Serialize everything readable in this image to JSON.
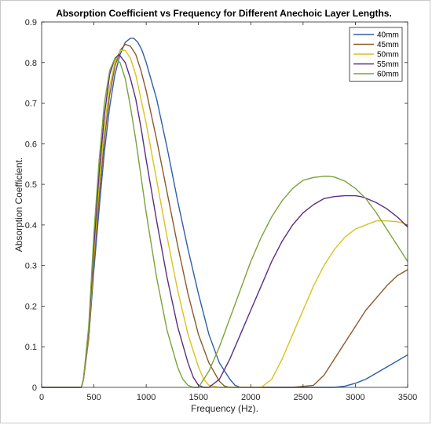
{
  "chart_data": {
    "type": "line",
    "title": "Absorption Coefficient vs Frequency for Different Anechoic Layer Lengths.",
    "xlabel": "Frequency (Hz).",
    "ylabel": "Absorption Coefficient.",
    "xlim": [
      0,
      3500
    ],
    "ylim": [
      0,
      0.9
    ],
    "xticks": [
      0,
      500,
      1000,
      1500,
      2000,
      2500,
      3000,
      3500
    ],
    "yticks": [
      0,
      0.1,
      0.2,
      0.3,
      0.4,
      0.5,
      0.6,
      0.7,
      0.8,
      0.9
    ],
    "grid": false,
    "legend_position": "top-right",
    "series": [
      {
        "name": "40mm",
        "color": "#2e5fa8",
        "x": [
          0,
          380,
          400,
          450,
          500,
          550,
          600,
          650,
          700,
          750,
          800,
          850,
          880,
          920,
          960,
          1000,
          1100,
          1200,
          1300,
          1400,
          1500,
          1600,
          1700,
          1800,
          1850,
          1900,
          1930,
          2000,
          2500,
          2800,
          2900,
          3000,
          3100,
          3200,
          3300,
          3400,
          3500
        ],
        "y": [
          0,
          0,
          0.02,
          0.12,
          0.29,
          0.44,
          0.58,
          0.69,
          0.77,
          0.82,
          0.85,
          0.86,
          0.86,
          0.85,
          0.83,
          0.8,
          0.71,
          0.59,
          0.46,
          0.34,
          0.23,
          0.13,
          0.06,
          0.02,
          0.005,
          0,
          0,
          0,
          0,
          0,
          0.003,
          0.01,
          0.02,
          0.035,
          0.05,
          0.065,
          0.08
        ]
      },
      {
        "name": "45mm",
        "color": "#8b5a2b",
        "x": [
          0,
          380,
          400,
          450,
          500,
          550,
          600,
          650,
          700,
          750,
          800,
          850,
          900,
          950,
          1000,
          1100,
          1200,
          1300,
          1400,
          1500,
          1600,
          1700,
          1750,
          1800,
          1850,
          2000,
          2400,
          2600,
          2700,
          2800,
          2900,
          3000,
          3100,
          3200,
          3300,
          3400,
          3500
        ],
        "y": [
          0,
          0,
          0.02,
          0.12,
          0.31,
          0.47,
          0.61,
          0.72,
          0.79,
          0.83,
          0.845,
          0.84,
          0.82,
          0.78,
          0.73,
          0.61,
          0.48,
          0.35,
          0.23,
          0.13,
          0.06,
          0.015,
          0.003,
          0,
          0,
          0,
          0,
          0.005,
          0.03,
          0.07,
          0.11,
          0.15,
          0.19,
          0.22,
          0.25,
          0.275,
          0.29
        ]
      },
      {
        "name": "50mm",
        "color": "#d9c21e",
        "x": [
          0,
          380,
          400,
          450,
          500,
          550,
          600,
          650,
          700,
          750,
          800,
          850,
          900,
          950,
          1000,
          1100,
          1200,
          1300,
          1400,
          1500,
          1550,
          1600,
          1700,
          2100,
          2200,
          2300,
          2400,
          2500,
          2600,
          2700,
          2800,
          2900,
          3000,
          3100,
          3200,
          3300,
          3400,
          3450,
          3500
        ],
        "y": [
          0,
          0,
          0.02,
          0.13,
          0.33,
          0.5,
          0.64,
          0.74,
          0.8,
          0.83,
          0.83,
          0.81,
          0.77,
          0.71,
          0.65,
          0.51,
          0.37,
          0.24,
          0.13,
          0.05,
          0.02,
          0.005,
          0,
          0,
          0.02,
          0.07,
          0.13,
          0.19,
          0.25,
          0.3,
          0.34,
          0.37,
          0.39,
          0.4,
          0.41,
          0.41,
          0.408,
          0.405,
          0.4
        ]
      },
      {
        "name": "55mm",
        "color": "#5b2d82",
        "x": [
          0,
          380,
          400,
          450,
          500,
          550,
          600,
          650,
          700,
          740,
          800,
          850,
          900,
          950,
          1000,
          1100,
          1200,
          1300,
          1400,
          1450,
          1500,
          1550,
          1600,
          1700,
          1800,
          1900,
          2000,
          2100,
          2200,
          2300,
          2400,
          2500,
          2600,
          2700,
          2800,
          2900,
          3000,
          3050,
          3100,
          3200,
          3300,
          3400,
          3500
        ],
        "y": [
          0,
          0,
          0.02,
          0.14,
          0.35,
          0.53,
          0.67,
          0.77,
          0.81,
          0.82,
          0.8,
          0.76,
          0.71,
          0.64,
          0.56,
          0.41,
          0.27,
          0.15,
          0.06,
          0.025,
          0.005,
          0,
          0,
          0.02,
          0.07,
          0.13,
          0.19,
          0.25,
          0.31,
          0.36,
          0.4,
          0.43,
          0.45,
          0.465,
          0.47,
          0.472,
          0.472,
          0.47,
          0.466,
          0.455,
          0.44,
          0.42,
          0.395
        ]
      },
      {
        "name": "60mm",
        "color": "#7aa33a",
        "x": [
          0,
          380,
          400,
          450,
          500,
          550,
          600,
          650,
          700,
          750,
          800,
          850,
          900,
          950,
          1000,
          1100,
          1200,
          1300,
          1350,
          1400,
          1450,
          1500,
          1600,
          1700,
          1800,
          1900,
          2000,
          2100,
          2200,
          2300,
          2400,
          2500,
          2600,
          2700,
          2750,
          2800,
          2900,
          3000,
          3100,
          3200,
          3300,
          3400,
          3500
        ],
        "y": [
          0,
          0,
          0.02,
          0.15,
          0.38,
          0.56,
          0.7,
          0.78,
          0.81,
          0.8,
          0.76,
          0.69,
          0.61,
          0.52,
          0.43,
          0.27,
          0.14,
          0.05,
          0.02,
          0.005,
          0,
          0,
          0.04,
          0.1,
          0.17,
          0.24,
          0.31,
          0.37,
          0.42,
          0.46,
          0.49,
          0.51,
          0.517,
          0.52,
          0.52,
          0.518,
          0.508,
          0.49,
          0.465,
          0.43,
          0.39,
          0.35,
          0.31
        ]
      }
    ]
  }
}
